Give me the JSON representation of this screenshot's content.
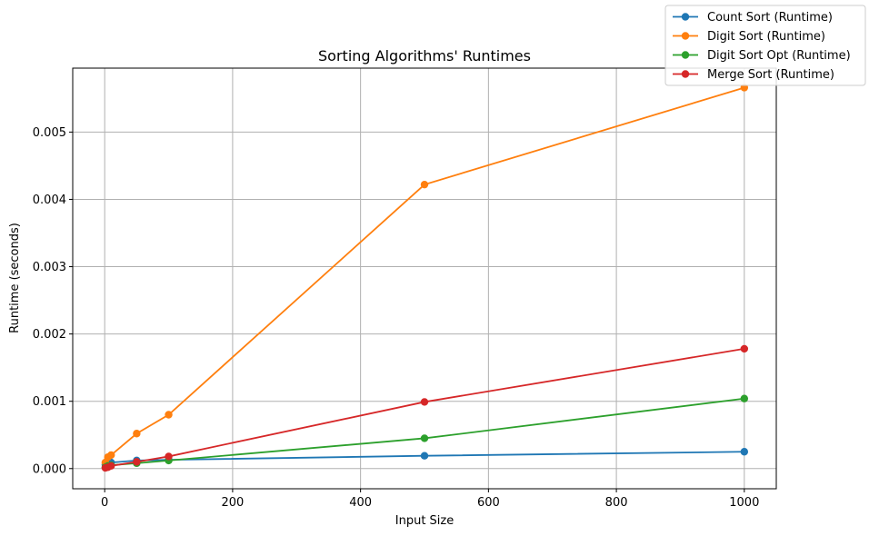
{
  "chart_data": {
    "type": "line",
    "title": "Sorting Algorithms' Runtimes",
    "xlabel": "Input Size",
    "ylabel": "Runtime (seconds)",
    "xlim": [
      -50,
      1050
    ],
    "ylim": [
      -0.0003,
      0.00595
    ],
    "xticks": [
      0,
      200,
      400,
      600,
      800,
      1000
    ],
    "xtick_labels": [
      "0",
      "200",
      "400",
      "600",
      "800",
      "1000"
    ],
    "yticks": [
      0,
      0.001,
      0.002,
      0.003,
      0.004,
      0.005
    ],
    "ytick_labels": [
      "0.000",
      "0.001",
      "0.002",
      "0.003",
      "0.004",
      "0.005"
    ],
    "grid": true,
    "legend_position": "top-right",
    "x": [
      1,
      5,
      10,
      50,
      100,
      500,
      1000
    ],
    "series": [
      {
        "name": "Count Sort (Runtime)",
        "color": "#1f77b4",
        "values": [
          6e-05,
          8e-05,
          9e-05,
          0.00012,
          0.00013,
          0.00019,
          0.00025
        ]
      },
      {
        "name": "Digit Sort (Runtime)",
        "color": "#ff7f0e",
        "values": [
          9e-05,
          0.00017,
          0.0002,
          0.00052,
          0.0008,
          0.00422,
          0.00566
        ]
      },
      {
        "name": "Digit Sort Opt (Runtime)",
        "color": "#2ca02c",
        "values": [
          2e-05,
          4e-05,
          5e-05,
          8e-05,
          0.00012,
          0.00045,
          0.00104
        ]
      },
      {
        "name": "Merge Sort (Runtime)",
        "color": "#d62728",
        "values": [
          1e-05,
          2e-05,
          4e-05,
          0.0001,
          0.00018,
          0.00099,
          0.00178
        ]
      }
    ]
  }
}
